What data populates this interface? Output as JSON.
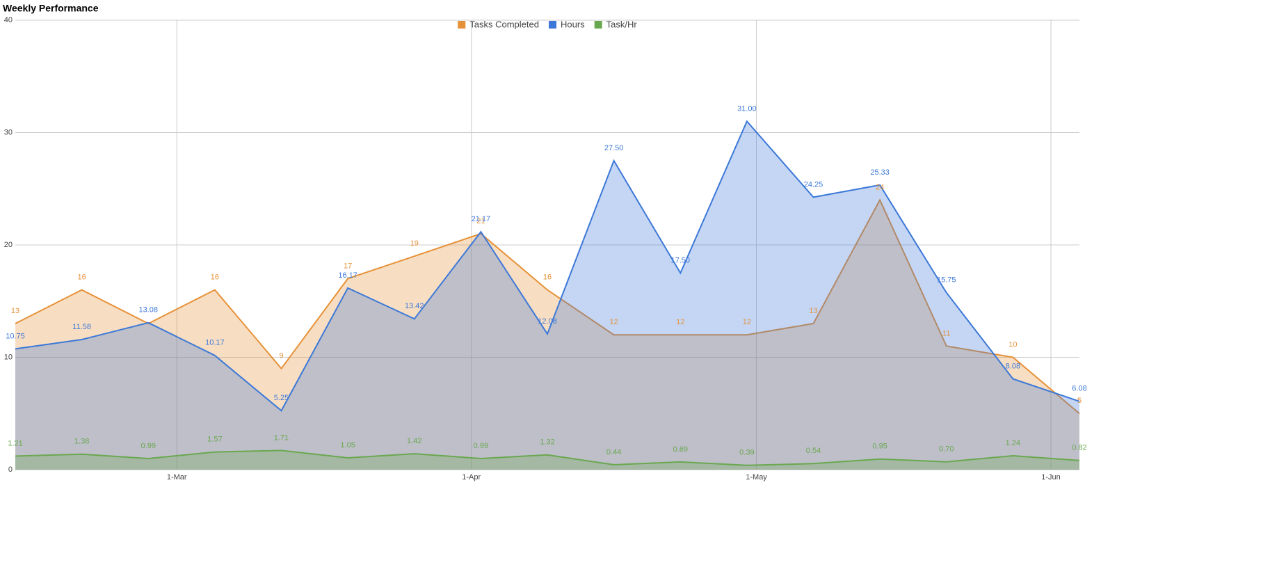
{
  "chart_data": {
    "type": "area",
    "title": "Weekly Performance",
    "x": [
      "12-Feb",
      "19-Feb",
      "26-Feb",
      "5-Mar",
      "12-Mar",
      "19-Mar",
      "26-Mar",
      "2-Apr",
      "9-Apr",
      "16-Apr",
      "23-Apr",
      "30-Apr",
      "7-May",
      "14-May",
      "21-May",
      "28-May",
      "4-Jun"
    ],
    "xticks": [
      "1-Mar",
      "1-Apr",
      "1-May",
      "1-Jun"
    ],
    "ylim": [
      0,
      40
    ],
    "yticks": [
      0,
      10,
      20,
      30,
      40
    ],
    "grid": true,
    "legend": "top",
    "series": [
      {
        "name": "Tasks Completed",
        "color": "#e69138",
        "values": [
          13,
          16,
          13,
          16,
          9,
          17,
          19,
          21,
          16,
          12,
          12,
          12,
          13,
          24,
          11,
          10,
          5
        ],
        "value_labels": [
          "13",
          "16",
          null,
          "16",
          "9",
          "17",
          "19",
          "21",
          "16",
          "12",
          "12",
          "12",
          "13",
          "24",
          "11",
          "10",
          "5"
        ]
      },
      {
        "name": "Hours",
        "color": "#3c78d8",
        "values": [
          10.75,
          11.58,
          13.08,
          10.17,
          5.25,
          16.17,
          13.42,
          21.17,
          12.08,
          27.5,
          17.5,
          31,
          24.25,
          25.33,
          15.75,
          8.08,
          6.08
        ],
        "value_labels": [
          "10.75",
          "11.58",
          "13.08",
          "10.17",
          "5.25",
          "16.17",
          "13.42",
          "21.17",
          "12.08",
          "27.50",
          "17.50",
          "31.00",
          "24.25",
          "25.33",
          "15.75",
          "8.08",
          "6.08"
        ]
      },
      {
        "name": "Task/Hr",
        "color": "#6aa84f",
        "values": [
          1.21,
          1.38,
          0.99,
          1.57,
          1.71,
          1.05,
          1.42,
          0.99,
          1.32,
          0.44,
          0.69,
          0.39,
          0.54,
          0.95,
          0.7,
          1.24,
          0.82
        ],
        "value_labels": [
          "1.21",
          "1.38",
          "0.99",
          "1.57",
          "1.71",
          "1.05",
          "1.42",
          "0.99",
          "1.32",
          "0.44",
          "0.69",
          "0.39",
          "0.54",
          "0.95",
          "0.70",
          "1.24",
          "0.82"
        ]
      }
    ]
  }
}
